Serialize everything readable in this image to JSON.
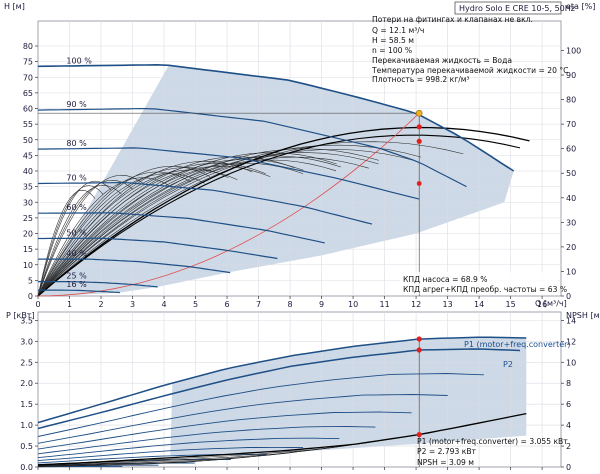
{
  "chart_data": [
    {
      "type": "line",
      "title": "Hydro Solo E CRE 10-5, 50Hz",
      "xlabel": "Q [м³/ч]",
      "ylabel": "H [м]",
      "ylabel_right": "eta [%]",
      "xlim": [
        0,
        16.6
      ],
      "ylim": [
        0,
        88
      ],
      "ylim_right": [
        0,
        112
      ],
      "x_ticks": [
        0,
        1,
        2,
        3,
        4,
        5,
        6,
        7,
        8,
        9,
        10,
        11,
        12,
        13,
        14,
        15,
        16
      ],
      "y_ticks": [
        0,
        5,
        10,
        15,
        20,
        25,
        30,
        35,
        40,
        45,
        50,
        55,
        60,
        65,
        70,
        75,
        80
      ],
      "y_ticks_right": [
        0,
        10,
        20,
        30,
        40,
        50,
        60,
        70,
        80,
        90,
        100
      ],
      "grid": true,
      "speed_curves": [
        {
          "label": "100 %",
          "x": [
            0,
            4,
            8,
            10,
            12,
            13.4,
            15.1
          ],
          "y": [
            73.5,
            74,
            69,
            64,
            58.5,
            51,
            40
          ]
        },
        {
          "label": "90 %",
          "x": [
            0,
            3.6,
            7.2,
            10.8,
            12.06,
            13.6
          ],
          "y": [
            59.5,
            60,
            55.9,
            47.4,
            43,
            35
          ]
        },
        {
          "label": "80 %",
          "x": [
            0,
            3.2,
            6.4,
            9.6,
            12.1
          ],
          "y": [
            47,
            47.4,
            44.2,
            37.4,
            31
          ]
        },
        {
          "label": "70 %",
          "x": [
            0,
            2.8,
            5.6,
            8.4,
            10.6
          ],
          "y": [
            36,
            36.3,
            33.8,
            28.7,
            23
          ]
        },
        {
          "label": "60 %",
          "x": [
            0,
            2.4,
            4.8,
            7.2,
            9.1
          ],
          "y": [
            26.5,
            26.6,
            24.8,
            21.1,
            17
          ]
        },
        {
          "label": "50 %",
          "x": [
            0,
            2,
            4,
            6,
            7.6
          ],
          "y": [
            18.4,
            18.5,
            17.3,
            14.6,
            12
          ]
        },
        {
          "label": "40 %",
          "x": [
            0,
            1.6,
            3.2,
            4.8,
            6.1
          ],
          "y": [
            11.8,
            11.8,
            11,
            9.4,
            7.5
          ]
        },
        {
          "label": "25 %",
          "x": [
            0,
            1,
            2,
            3,
            3.8
          ],
          "y": [
            4.6,
            4.6,
            4.3,
            3.7,
            2.9
          ]
        },
        {
          "label": "16 %",
          "x": [
            0,
            0.64,
            1.28,
            1.92,
            2.6
          ],
          "y": [
            1.9,
            1.9,
            1.8,
            1.5,
            1.1
          ]
        }
      ],
      "annotations": [
        "Потери на фитингах и клапанах не вкл.",
        "Q = 12.1 м³/ч",
        "H = 58.5 м",
        "n = 100 %",
        "Перекачиваемая жидкость = Вода",
        "Температура перекачиваемой жидкости = 20 °C",
        "Плотность = 998.2 кг/м³",
        "КПД насоса = 68.9 %",
        "КПД агрег+КПД преобр. частоты = 63 %"
      ],
      "duty_point": {
        "x": 12.1,
        "y": 58.5
      },
      "efficiency_points_pct": [
        68.9,
        63
      ]
    },
    {
      "type": "line",
      "xlabel": "",
      "ylabel": "P [кВт]",
      "ylabel_right": "NPSH [м]",
      "xlim": [
        0,
        16.6
      ],
      "ylim": [
        0,
        3.7
      ],
      "ylim_right": [
        0,
        14.8
      ],
      "y_ticks": [
        0.0,
        0.5,
        1.0,
        1.5,
        2.0,
        2.5,
        3.0,
        3.5
      ],
      "y_ticks_right": [
        0,
        2,
        4,
        6,
        8,
        10,
        12,
        14
      ],
      "series": [
        {
          "name": "P1 (motor+freq.converter)",
          "x": [
            0,
            2,
            4,
            6,
            8,
            10,
            12.1,
            14,
            15.5
          ],
          "y": [
            1.06,
            1.5,
            1.95,
            2.35,
            2.65,
            2.88,
            3.055,
            3.1,
            3.08
          ]
        },
        {
          "name": "P2",
          "x": [
            0,
            2,
            4,
            6,
            8,
            10,
            12.1,
            14,
            15.3
          ],
          "y": [
            0.92,
            1.3,
            1.7,
            2.08,
            2.4,
            2.62,
            2.793,
            2.82,
            2.78
          ]
        },
        {
          "name": "NPSH",
          "x": [
            0,
            2,
            4,
            6,
            8,
            10,
            12.1,
            14,
            15.5
          ],
          "y": [
            0.2,
            0.5,
            0.85,
            1.2,
            1.6,
            2.15,
            3.09,
            4.2,
            5.1
          ]
        }
      ],
      "annotations": [
        "P1 (motor+freq.converter) = 3.055 кВт",
        "P2 = 2.793 кВт",
        "NPSH = 3.09 м"
      ]
    }
  ]
}
